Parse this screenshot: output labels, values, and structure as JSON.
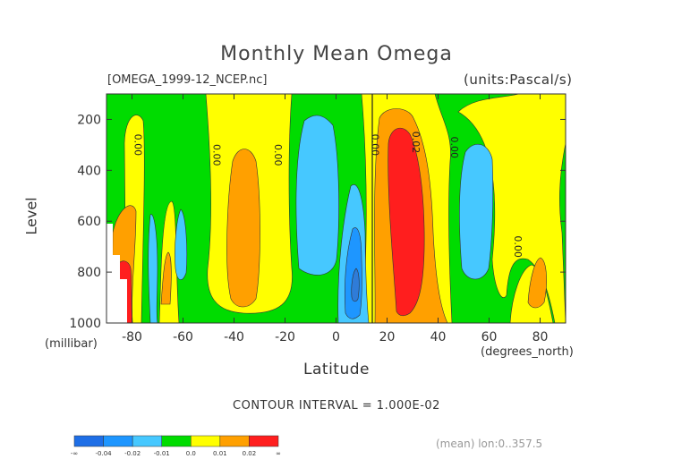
{
  "chart_data": {
    "type": "contour",
    "title": "Monthly Mean Omega",
    "file_label": "[OMEGA_1999-12_NCEP.nc]",
    "units_label": "(units:Pascal/s)",
    "xlabel": "Latitude",
    "x_units": "(degrees_north)",
    "ylabel": "Level",
    "y_units": "(millibar)",
    "x_range": [
      -90,
      90
    ],
    "y_range": [
      1000,
      100
    ],
    "x_ticks": [
      -80,
      -60,
      -40,
      -20,
      0,
      20,
      40,
      60,
      80
    ],
    "y_ticks": [
      200,
      400,
      600,
      800,
      1000
    ],
    "contour_interval_text": "CONTOUR INTERVAL = 1.000E-02",
    "footer": "(mean) lon:0..357.5",
    "contour_labels": [
      "0.00",
      "0.00",
      "0.00",
      "0.00",
      "0.02",
      "0.00",
      "0.00"
    ],
    "legend": {
      "labels": [
        "-∞",
        "-0.04",
        "-0.02",
        "-0.01",
        "0.0",
        "0.01",
        "0.02",
        "∞"
      ],
      "colors": [
        "#1e6ee6",
        "#1e96ff",
        "#46c8ff",
        "#00dc00",
        "#ffff00",
        "#ffa000",
        "#ff1e1e"
      ]
    },
    "field_colors": {
      "strong_negative": "#2f7cd8",
      "moderate_negative": "#1e96ff",
      "weak_negative": "#46c8ff",
      "near_zero": "#00dc00",
      "weak_positive": "#ffff00",
      "moderate_positive": "#ffa000",
      "strong_positive": "#ff1e1e"
    }
  }
}
